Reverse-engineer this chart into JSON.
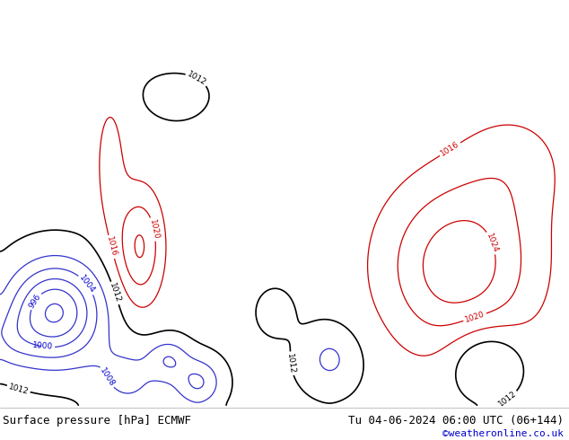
{
  "title_left": "Surface pressure [hPa] ECMWF",
  "title_right": "Tu 04-06-2024 06:00 UTC (06+144)",
  "credit": "©weatheronline.co.uk",
  "ocean_color": "#d8dce8",
  "land_color": "#c8e8a0",
  "border_color": "#888888",
  "coast_color": "#555555",
  "text_color_black": "#000000",
  "text_color_blue": "#0000cc",
  "text_color_red": "#cc0000",
  "title_fontsize": 9,
  "credit_fontsize": 8,
  "lon_min": -110,
  "lon_max": 45,
  "lat_min": -62,
  "lat_max": 25
}
